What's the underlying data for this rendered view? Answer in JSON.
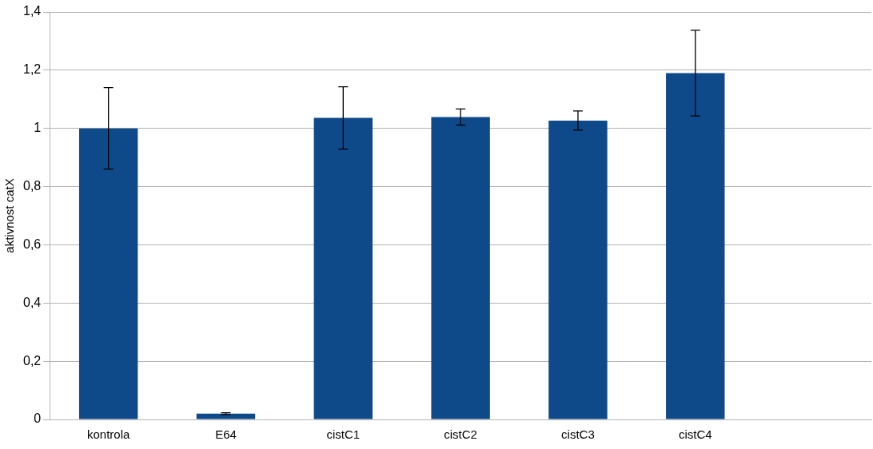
{
  "chart_data": {
    "type": "bar",
    "ylabel": "aktivnost catX",
    "categories": [
      "kontrola",
      "E64",
      "cistC1",
      "cistC2",
      "cistC3",
      "cistC4",
      null
    ],
    "values": [
      1.0,
      0.02,
      1.036,
      1.039,
      1.027,
      1.19,
      null
    ],
    "errors": [
      0.14,
      0.003,
      0.107,
      0.028,
      0.033,
      0.147,
      null
    ],
    "color": "#0e4a8a",
    "ylim": [
      0,
      1.4
    ],
    "yticks": [
      {
        "value": 0,
        "label": "0"
      },
      {
        "value": 0.2,
        "label": "0,2"
      },
      {
        "value": 0.4,
        "label": "0,4"
      },
      {
        "value": 0.6,
        "label": "0,6"
      },
      {
        "value": 0.8,
        "label": "0,8"
      },
      {
        "value": 1,
        "label": "1"
      },
      {
        "value": 1.2,
        "label": "1,2"
      },
      {
        "value": 1.4,
        "label": "1,4"
      }
    ],
    "grid": "y",
    "legend": false
  }
}
